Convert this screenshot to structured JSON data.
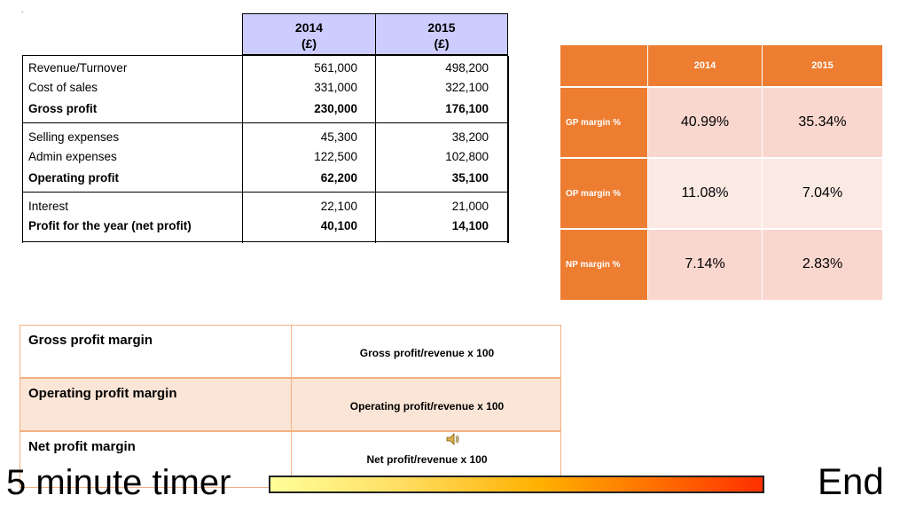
{
  "statement": {
    "headers": {
      "y2014": "2014",
      "y2014_unit": "(£)",
      "y2015": "2015",
      "y2015_unit": "(£)"
    },
    "rows": [
      {
        "label": "Revenue/Turnover",
        "v2014": "561,000",
        "v2015": "498,200",
        "bold": false
      },
      {
        "label": "Cost of sales",
        "v2014": "331,000",
        "v2015": "322,100",
        "bold": false
      },
      {
        "label": "Gross profit",
        "v2014": "230,000",
        "v2015": "176,100",
        "bold": true
      },
      {
        "label": "Selling expenses",
        "v2014": "45,300",
        "v2015": "38,200",
        "bold": false
      },
      {
        "label": "Admin expenses",
        "v2014": "122,500",
        "v2015": "102,800",
        "bold": false
      },
      {
        "label": "Operating profit",
        "v2014": "62,200",
        "v2015": "35,100",
        "bold": true
      },
      {
        "label": "Interest",
        "v2014": "22,100",
        "v2015": "21,000",
        "bold": false
      },
      {
        "label": "Profit for the year (net profit)",
        "v2014": "40,100",
        "v2015": "14,100",
        "bold": true
      }
    ]
  },
  "margins": {
    "col_2014": "2014",
    "col_2015": "2015",
    "rows": [
      {
        "label": "GP margin %",
        "v2014": "40.99%",
        "v2015": "35.34%"
      },
      {
        "label": "OP margin %",
        "v2014": "11.08%",
        "v2015": "7.04%"
      },
      {
        "label": "NP margin %",
        "v2014": "7.14%",
        "v2015": "2.83%"
      }
    ],
    "colors": {
      "header": "#ed7d31",
      "cell_dark": "#f9d6ce",
      "cell_light": "#fbe9e4"
    }
  },
  "formulas": [
    {
      "name": "Gross profit margin",
      "expr": "Gross profit/revenue  x 100"
    },
    {
      "name": "Operating profit margin",
      "expr": "Operating profit/revenue x 100"
    },
    {
      "name": "Net profit margin",
      "expr": "Net profit/revenue x 100"
    }
  ],
  "timer": {
    "label": "5 minute timer",
    "end_label": "End"
  },
  "icons": {
    "speaker": "speaker-icon"
  },
  "misc": {
    "corner_mark": "-"
  }
}
